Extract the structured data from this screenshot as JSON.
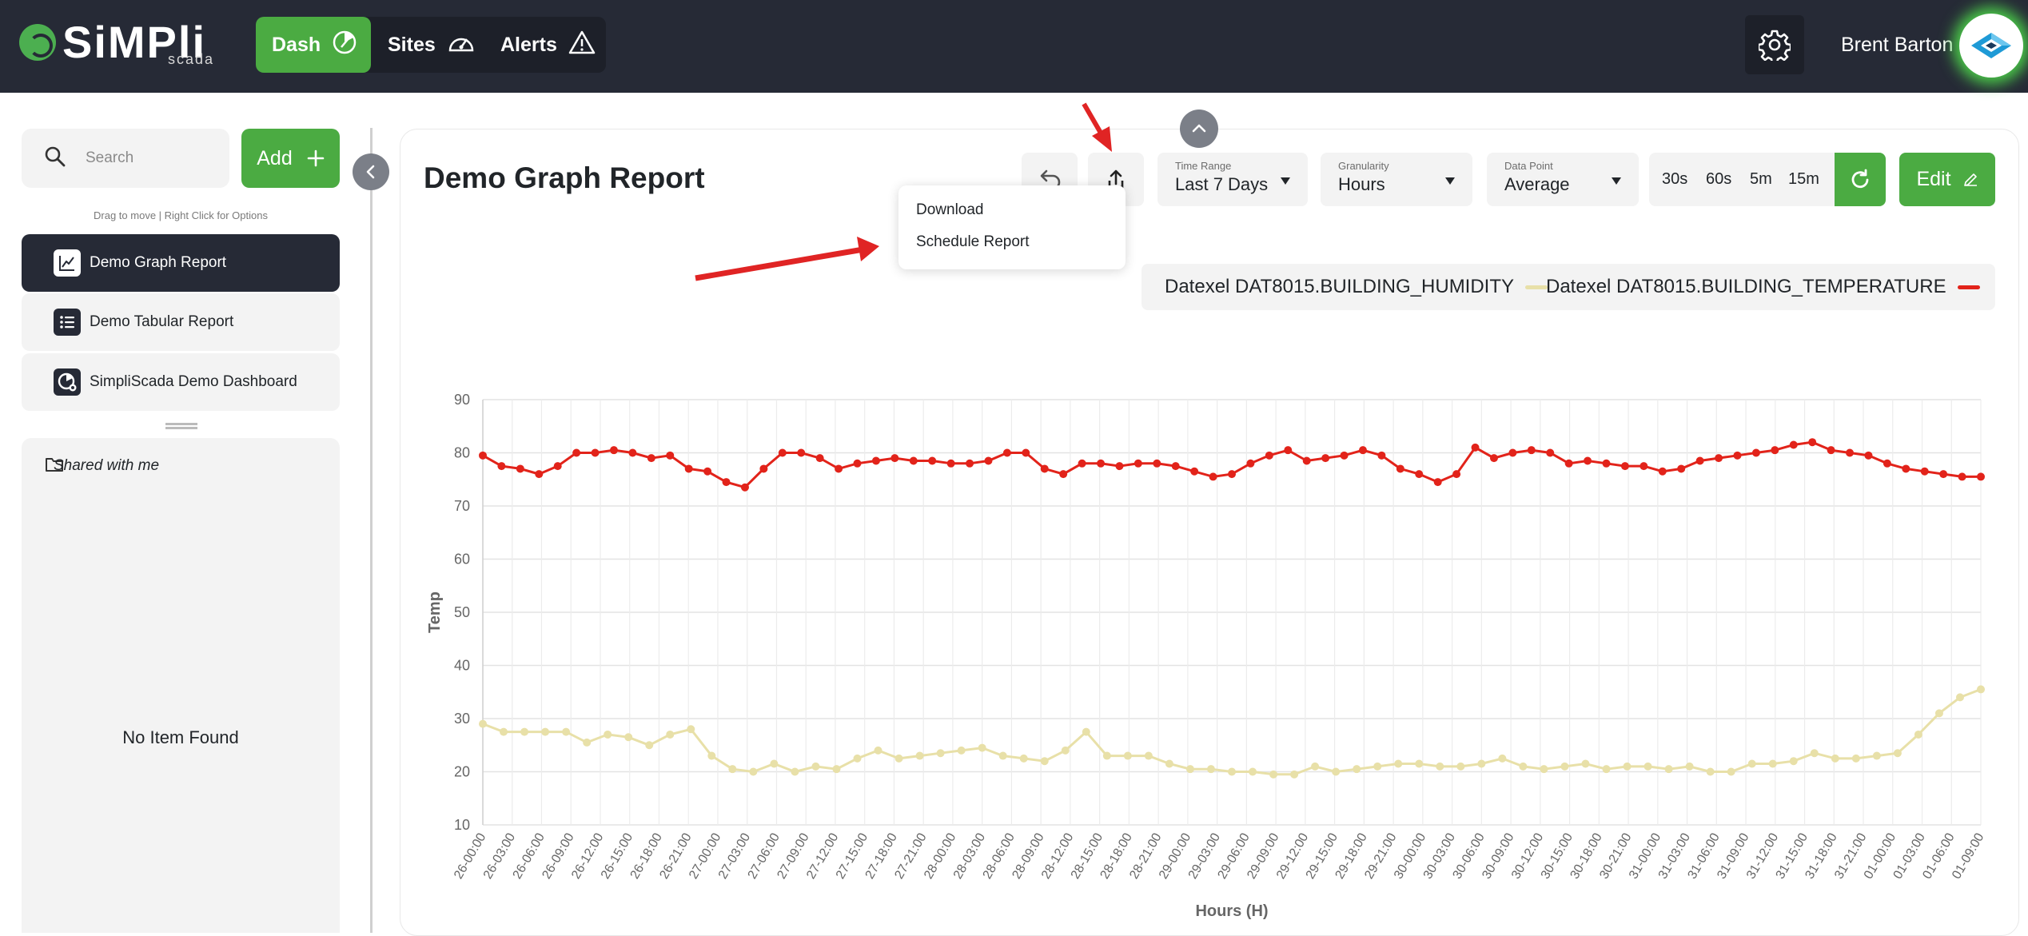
{
  "app": {
    "logo_text": "SiMPli",
    "logo_sub": "scada"
  },
  "nav": {
    "items": [
      {
        "label": "Dash",
        "active": true,
        "icon": "dash-gauge-icon"
      },
      {
        "label": "Sites",
        "active": false,
        "icon": "speedometer-icon"
      },
      {
        "label": "Alerts",
        "active": false,
        "icon": "warning-icon"
      }
    ],
    "settings_icon": "gear-icon"
  },
  "user": {
    "name": "Brent Barton"
  },
  "sidebar": {
    "search_placeholder": "Search",
    "add_label": "Add",
    "drag_hint": "Drag to move | Right Click for Options",
    "items": [
      {
        "label": "Demo Graph Report",
        "icon": "line-chart-icon",
        "active": true
      },
      {
        "label": "Demo Tabular Report",
        "icon": "list-icon",
        "active": false
      },
      {
        "label": "SimpliScada Demo Dashboard",
        "icon": "dashboard-icon",
        "active": false
      }
    ],
    "shared_title": "Shared with me",
    "empty_text": "No Item Found"
  },
  "report": {
    "title": "Demo Graph Report",
    "time_range": {
      "label": "Time Range",
      "value": "Last 7 Days"
    },
    "granularity": {
      "label": "Granularity",
      "value": "Hours"
    },
    "data_point": {
      "label": "Data Point",
      "value": "Average"
    },
    "intervals": [
      "30s",
      "60s",
      "5m",
      "15m"
    ],
    "edit_label": "Edit",
    "export_menu": [
      "Download",
      "Schedule Report"
    ]
  },
  "colors": {
    "accent_green": "#4bab42",
    "topbar": "#262a36",
    "annotation_red": "#e02424",
    "humidity": "#e8e0a8",
    "temperature": "#e2231a"
  },
  "chart_data": {
    "type": "line",
    "xlabel": "Hours (H)",
    "ylabel": "Temp",
    "ylim": [
      10,
      90
    ],
    "yticks": [
      10,
      20,
      30,
      40,
      50,
      60,
      70,
      80,
      90
    ],
    "grid": true,
    "legend_position": "top-right",
    "x_tick_labels": [
      "26-00:00",
      "26-03:00",
      "26-06:00",
      "26-09:00",
      "26-12:00",
      "26-15:00",
      "26-18:00",
      "26-21:00",
      "27-00:00",
      "27-03:00",
      "27-06:00",
      "27-09:00",
      "27-12:00",
      "27-15:00",
      "27-18:00",
      "27-21:00",
      "28-00:00",
      "28-03:00",
      "28-06:00",
      "28-09:00",
      "28-12:00",
      "28-15:00",
      "28-18:00",
      "28-21:00",
      "29-00:00",
      "29-03:00",
      "29-06:00",
      "29-09:00",
      "29-12:00",
      "29-15:00",
      "29-18:00",
      "29-21:00",
      "30-00:00",
      "30-03:00",
      "30-06:00",
      "30-09:00",
      "30-12:00",
      "30-15:00",
      "30-18:00",
      "30-21:00",
      "31-00:00",
      "31-03:00",
      "31-06:00",
      "31-09:00",
      "31-12:00",
      "31-15:00",
      "31-18:00",
      "31-21:00",
      "01-00:00",
      "01-03:00",
      "01-06:00",
      "01-09:00"
    ],
    "series": [
      {
        "name": "Datexel DAT8015.BUILDING_HUMIDITY",
        "color": "#e8e0a8",
        "values": [
          29,
          27.5,
          27.5,
          27.5,
          27.5,
          25.5,
          27,
          26.5,
          25,
          27,
          28,
          23,
          20.5,
          20,
          21.5,
          20,
          21,
          20.5,
          22.5,
          24,
          22.5,
          23,
          23.5,
          24,
          24.5,
          23,
          22.5,
          22,
          24,
          27.5,
          23,
          23,
          23,
          21.5,
          20.5,
          20.5,
          20,
          20,
          19.5,
          19.5,
          21,
          20,
          20.5,
          21,
          21.5,
          21.5,
          21,
          21,
          21.5,
          22.5,
          21,
          20.5,
          21,
          21.5,
          20.5,
          21,
          21,
          20.5,
          21,
          20,
          20,
          21.5,
          21.5,
          22,
          23.5,
          22.5,
          22.5,
          23,
          23.5,
          27,
          31,
          34,
          35.5
        ]
      },
      {
        "name": "Datexel DAT8015.BUILDING_TEMPERATURE",
        "color": "#e2231a",
        "values": [
          79.5,
          77.5,
          77,
          76,
          77.5,
          80,
          80,
          80.5,
          80,
          79,
          79.5,
          77,
          76.5,
          74.5,
          73.5,
          77,
          80,
          80,
          79,
          77,
          78,
          78.5,
          79,
          78.5,
          78.5,
          78,
          78,
          78.5,
          80,
          80,
          77,
          76,
          78,
          78,
          77.5,
          78,
          78,
          77.5,
          76.5,
          75.5,
          76,
          78,
          79.5,
          80.5,
          78.5,
          79,
          79.5,
          80.5,
          79.5,
          77,
          76,
          74.5,
          76,
          81,
          79,
          80,
          80.5,
          80,
          78,
          78.5,
          78,
          77.5,
          77.5,
          76.5,
          77,
          78.5,
          79,
          79.5,
          80,
          80.5,
          81.5,
          82,
          80.5,
          80,
          79.5,
          78,
          77,
          76.5,
          76,
          75.5,
          75.5
        ]
      }
    ]
  }
}
